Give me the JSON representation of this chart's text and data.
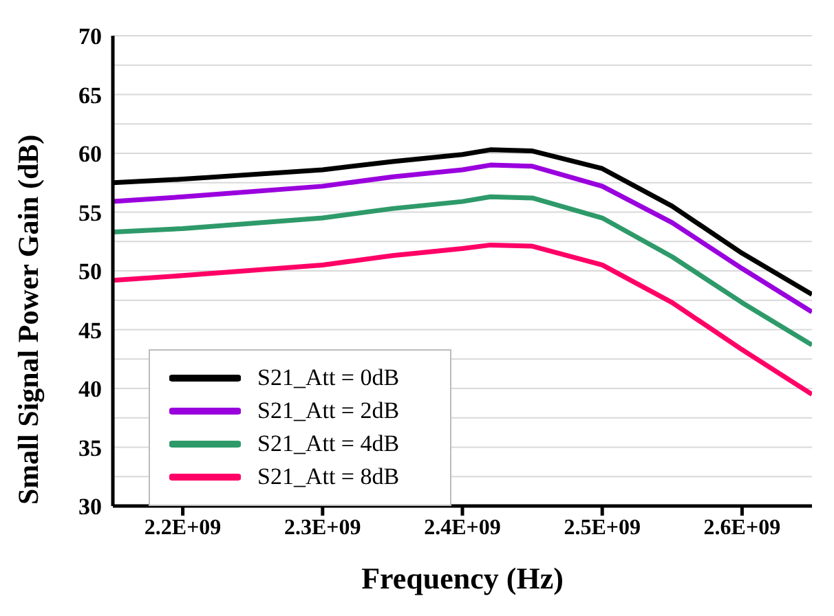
{
  "chart_data": {
    "type": "line",
    "xlabel": "Frequency (Hz)",
    "ylabel": "Small Signal Power Gain (dB)",
    "x": [
      2150000000,
      2200000000,
      2300000000,
      2350000000,
      2400000000,
      2420000000,
      2450000000,
      2500000000,
      2550000000,
      2600000000,
      2650000000
    ],
    "series": [
      {
        "name": "S21_Att = 0dB",
        "color": "#000000",
        "values": [
          57.5,
          57.8,
          58.6,
          59.3,
          59.9,
          60.3,
          60.2,
          58.7,
          55.5,
          51.5,
          48
        ]
      },
      {
        "name": "S21_Att = 2dB",
        "color": "#9900dd",
        "values": [
          55.9,
          56.3,
          57.2,
          58,
          58.6,
          59,
          58.9,
          57.2,
          54.1,
          50.2,
          46.5
        ]
      },
      {
        "name": "S21_Att = 4dB",
        "color": "#2e9a6a",
        "values": [
          53.3,
          53.6,
          54.5,
          55.3,
          55.9,
          56.3,
          56.2,
          54.5,
          51.2,
          47.3,
          43.7
        ]
      },
      {
        "name": "S21_Att = 8dB",
        "color": "#ff0066",
        "values": [
          49.2,
          49.6,
          50.5,
          51.3,
          51.9,
          52.2,
          52.1,
          50.5,
          47.3,
          43.3,
          39.5
        ]
      }
    ],
    "xlim": [
      2150000000,
      2650000000
    ],
    "xticks": [
      {
        "value": 2200000000,
        "label": "2.2E+09"
      },
      {
        "value": 2300000000,
        "label": "2.3E+09"
      },
      {
        "value": 2400000000,
        "label": "2.4E+09"
      },
      {
        "value": 2500000000,
        "label": "2.5E+09"
      },
      {
        "value": 2600000000,
        "label": "2.6E+09"
      }
    ],
    "ylim": [
      30,
      70
    ],
    "yticks": [
      30,
      {
        "value": 32.5,
        "label": null
      },
      35,
      {
        "value": 37.5,
        "label": null
      },
      40,
      {
        "value": 42.5,
        "label": null
      },
      45,
      {
        "value": 47.5,
        "label": null
      },
      50,
      {
        "value": 52.5,
        "label": null
      },
      55,
      {
        "value": 57.5,
        "label": null
      },
      60,
      {
        "value": 62.5,
        "label": null
      },
      65,
      {
        "value": 67.5,
        "label": null
      },
      70
    ],
    "grid": "y",
    "legend": "bottom left",
    "marker": "none",
    "line_style": "solid"
  }
}
